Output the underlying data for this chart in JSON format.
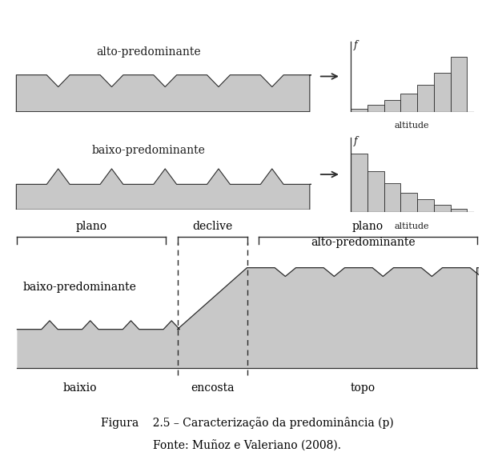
{
  "bg_color": "#ffffff",
  "fill_color": "#c8c8c8",
  "line_color": "#2b2b2b",
  "title1": "alto-predominante",
  "title2": "baixo-predominante",
  "label_altitude": "altitude",
  "label_f": "f",
  "label_plano_left": "plano",
  "label_plano_right": "plano",
  "label_declive": "declive",
  "label_baixio": "baixio",
  "label_encosta": "encosta",
  "label_topo": "topo",
  "label_baixo_pred": "baixo-predominante",
  "label_alto_pred": "alto-predominante",
  "fig_caption": "Figura    2.5 – Caracterização da predominância (p)",
  "fig_source": "Fonte: Muñoz e Valeriano (2008)."
}
